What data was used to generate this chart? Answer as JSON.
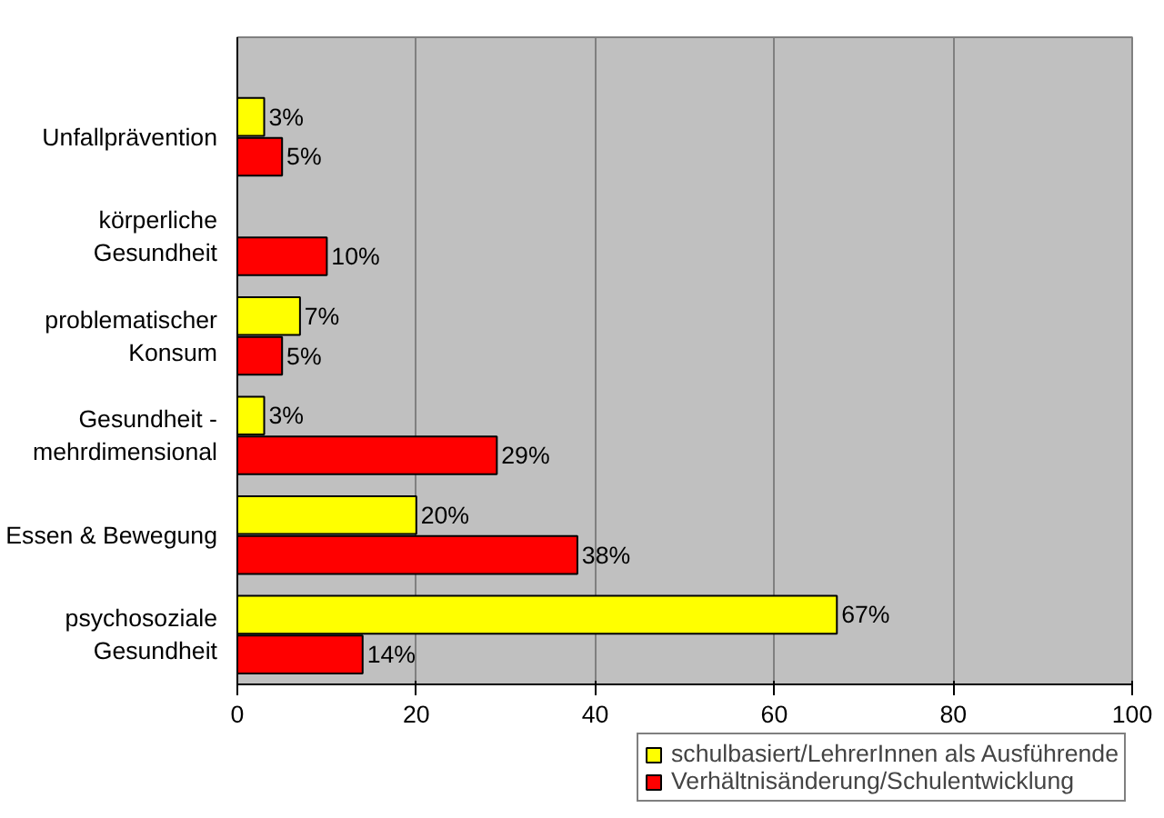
{
  "chart_data": {
    "type": "bar",
    "orientation": "horizontal",
    "categories": [
      "Unfallprävention",
      "körperliche\nGesundheit",
      "problematischer\nKonsum",
      "Gesundheit -\nmehrdimensional",
      "Essen & Bewegung",
      "psychosoziale\nGesundheit"
    ],
    "series": [
      {
        "name": "schulbasiert/LehrerInnen als Ausführende",
        "color": "#ffff00",
        "values": [
          3,
          null,
          7,
          3,
          20,
          67
        ],
        "value_labels": [
          "3%",
          null,
          "7%",
          "3%",
          "20%",
          "67%"
        ]
      },
      {
        "name": "Verhältnisänderung/Schulentwicklung",
        "color": "#ff0000",
        "values": [
          5,
          10,
          5,
          29,
          38,
          14
        ],
        "value_labels": [
          "5%",
          "10%",
          "5%",
          "29%",
          "38%",
          "14%"
        ]
      }
    ],
    "xlim": [
      0,
      100
    ],
    "xticks": [
      0,
      20,
      40,
      60,
      80,
      100
    ],
    "grid": "x",
    "legend": "bottom"
  }
}
